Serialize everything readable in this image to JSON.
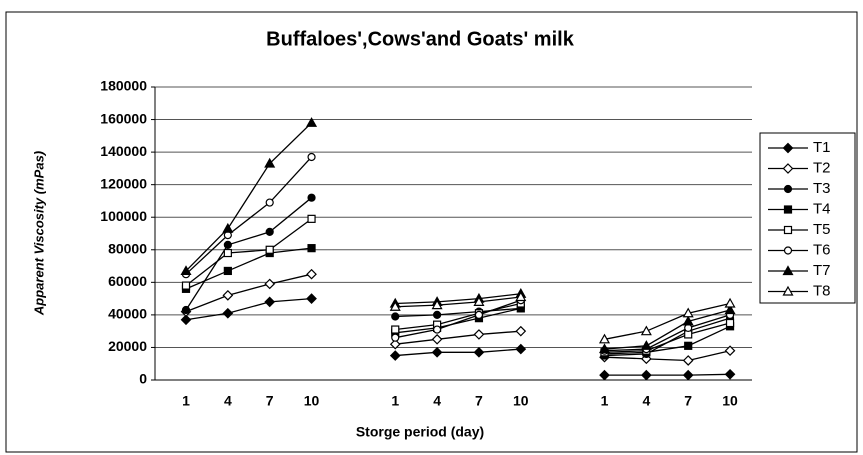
{
  "chart_data": {
    "type": "line",
    "title": "Buffaloes',Cows'and Goats' milk",
    "x_label": "Storge period (day)",
    "y_label": "Apparent Viscosity (mPas)",
    "categories": [
      "1",
      "4",
      "7",
      "10",
      null,
      "1",
      "4",
      "7",
      "10",
      null,
      "1",
      "4",
      "7",
      "10"
    ],
    "ylim": [
      0,
      180000
    ],
    "yticks": [
      0,
      20000,
      40000,
      60000,
      80000,
      100000,
      120000,
      140000,
      160000,
      180000
    ],
    "grid": true,
    "legend": "right",
    "series": [
      {
        "name": "T1",
        "color": "#000000",
        "marker": "diamond",
        "filled": true,
        "values": [
          37000,
          41000,
          48000,
          50000,
          null,
          15000,
          17000,
          17000,
          19000,
          null,
          3000,
          3000,
          3000,
          3500
        ]
      },
      {
        "name": "T2",
        "color": "#000000",
        "marker": "diamond",
        "filled": false,
        "values": [
          42000,
          52000,
          59000,
          65000,
          null,
          22000,
          25000,
          28000,
          30000,
          null,
          14000,
          13000,
          12000,
          18000
        ]
      },
      {
        "name": "T3",
        "color": "#000000",
        "marker": "circle",
        "filled": true,
        "values": [
          43000,
          83000,
          91000,
          112000,
          null,
          39000,
          40000,
          42000,
          44000,
          null,
          15000,
          16000,
          30000,
          38000
        ]
      },
      {
        "name": "T4",
        "color": "#000000",
        "marker": "square",
        "filled": true,
        "values": [
          56000,
          67000,
          78000,
          81000,
          null,
          29000,
          32000,
          38000,
          44000,
          null,
          16000,
          17000,
          21000,
          33000
        ]
      },
      {
        "name": "T5",
        "color": "#000000",
        "marker": "square",
        "filled": false,
        "values": [
          58000,
          78000,
          80000,
          99000,
          null,
          31000,
          34000,
          41000,
          47000,
          null,
          17000,
          18000,
          28000,
          35000
        ]
      },
      {
        "name": "T6",
        "color": "#000000",
        "marker": "circle",
        "filled": false,
        "values": [
          65000,
          89000,
          109000,
          137000,
          null,
          26000,
          31000,
          40000,
          49000,
          null,
          18000,
          19000,
          32000,
          40000
        ]
      },
      {
        "name": "T7",
        "color": "#000000",
        "marker": "triangle",
        "filled": true,
        "values": [
          67000,
          93000,
          133000,
          158000,
          null,
          47000,
          48000,
          50000,
          53000,
          null,
          19000,
          21000,
          36000,
          43000
        ]
      },
      {
        "name": "T8",
        "color": "#000000",
        "marker": "triangle",
        "filled": false,
        "values": [
          null,
          null,
          null,
          null,
          null,
          45000,
          46000,
          48000,
          51000,
          null,
          25000,
          30000,
          41000,
          47000
        ]
      }
    ]
  }
}
